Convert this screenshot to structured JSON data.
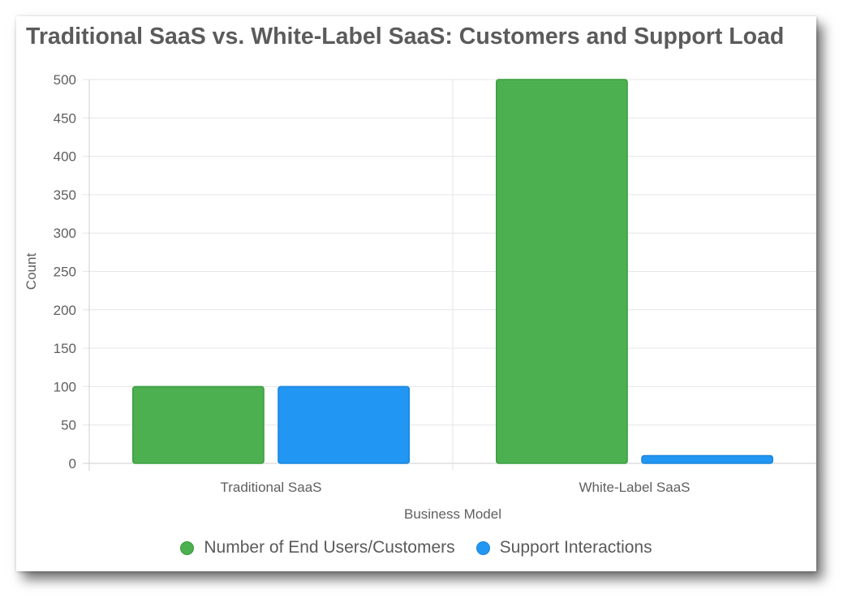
{
  "chart_data": {
    "type": "bar",
    "title": "Traditional SaaS vs. White-Label SaaS: Customers and Support Load",
    "xlabel": "Business Model",
    "ylabel": "Count",
    "categories": [
      "Traditional SaaS",
      "White-Label SaaS"
    ],
    "series": [
      {
        "name": "Number of End Users/Customers",
        "values": [
          100,
          500
        ],
        "color": "#4caf50",
        "border": "#3a9d3f"
      },
      {
        "name": "Support Interactions",
        "values": [
          100,
          10
        ],
        "color": "#2196f3",
        "border": "#1a85dc"
      }
    ],
    "ylim": [
      0,
      500
    ],
    "yticks": [
      "500",
      "450",
      "400",
      "350",
      "300",
      "250",
      "200",
      "150",
      "100",
      "50",
      "0"
    ],
    "grid": true,
    "legend": "bottom"
  }
}
